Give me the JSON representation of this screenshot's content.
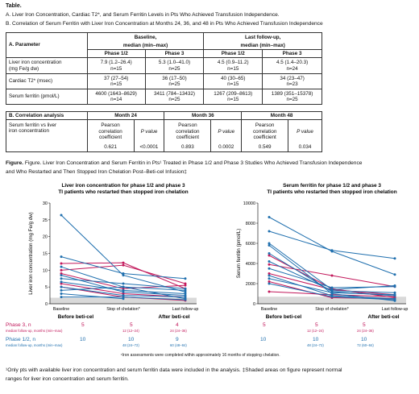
{
  "table_title": "Table.",
  "section_a": "A. Liver Iron Concentration, Cardiac T2*, and Serum Ferritin Levels in Pts Who Achieved Transfusion Independence.",
  "section_b": "B. Correlation of Serum Ferritin with Liver Iron Concentration at Months 24, 36, and 48 in Pts Who Achieved Transfusion Independence",
  "table_a": {
    "param_header": "A.   Parameter",
    "baseline_header": "Baseline,",
    "last_header": "Last follow-up,",
    "median_header": "median (min–max)",
    "phase12": "Phase 1/2",
    "phase3": "Phase 3",
    "rows": [
      {
        "label1": "Liver iron concentration",
        "label2": "(mg Fe/g dw)",
        "c1": "7.9 (1.2–26.4)",
        "n1": "n=15",
        "c2": "5.3 (1.0–41.0)",
        "n2": "n=25",
        "c3": "4.5 (0.9–11.2)",
        "n3": "n=15",
        "c4": "4.5 (1.4–20.3)",
        "n4": "n=24"
      },
      {
        "label1": "Cardiac T2* (msec)",
        "label2": "",
        "c1": "37 (27–54)",
        "n1": "n=15",
        "c2": "36 (17–50)",
        "n2": "n=25",
        "c3": "40 (30–65)",
        "n3": "n=15",
        "c4": "34 (23–47)",
        "n4": "n=23"
      },
      {
        "label1": "Serum ferritin (pmol/L)",
        "label2": "",
        "c1": "4600 (1643–8629)",
        "n1": "n=14",
        "c2": "3411 (784–13432)",
        "n2": "n=25",
        "c3": "1267 (209–8613)",
        "n3": "n=15",
        "c4": "1389 (351–15378)",
        "n4": "n=25"
      }
    ]
  },
  "table_b": {
    "header": "B.   Correlation analysis",
    "months": [
      "Month 24",
      "Month 36",
      "Month 48"
    ],
    "pearson1": "Pearson correlation",
    "pearson2": "coefficient",
    "pval": "P value",
    "row_label1": "Serum ferritin vs liver",
    "row_label2": "iron concentration",
    "values": [
      "0.621",
      "<0.0001",
      "0.893",
      "0.0002",
      "0.549",
      "0.034"
    ]
  },
  "figure_caption1": "Figure. Liver Iron Concentration and Serum Ferritin in Pts¹ Treated in Phase 1/2 and Phase 3 Studies Who Achieved Transfusion Independence",
  "figure_caption2": "and Who Restarted and Then Stopped Iron Chelation Post–Beti-cel Infusion‡",
  "legend": {
    "phase3_label": "Phase 3, n",
    "phase3_sub": "median follow-up, months (min–max)",
    "phase12_label": "Phase 1/2, n",
    "phase12_sub": "median follow-up, months (min–max)",
    "left_p3_n": [
      "5",
      "5",
      "4"
    ],
    "left_p3_m": [
      "12 (12–24)",
      "24 (24–36)"
    ],
    "left_p12_n": [
      "10",
      "10",
      "9"
    ],
    "left_p12_m": [
      "48 (24–72)",
      "60 (48–84)"
    ],
    "right_p3_n": [
      "5",
      "5",
      "5"
    ],
    "right_p3_m": [
      "12 (12–24)",
      "24 (24–36)"
    ],
    "right_p12_n": [
      "10",
      "10",
      "10"
    ],
    "right_p12_m": [
      "48 (24–72)",
      "72 (60–84)"
    ],
    "iron_note": "¹Iron assessments were completed within approximately 16 months of stopping chelation."
  },
  "footnote1": "¹Only pts with available liver iron concentration and serum ferritin data were included in the analysis. ‡Shaded areas on figure represent normal",
  "footnote2": "ranges for liver iron concentration and serum ferritin.",
  "colors": {
    "phase3": "#c2185b",
    "phase12": "#1f6fae",
    "shade": "#d9d9d9"
  },
  "chart_data": [
    {
      "type": "line",
      "title": "Liver iron concentration for phase 1/2 and phase 3",
      "subtitle": "TI patients who restarted then stopped iron chelation",
      "ylabel": "Liver iron concentration (mg Fe/g dw)",
      "xlabel": "",
      "categories": [
        "Baseline",
        "Stop of chelation*",
        "Last follow-up"
      ],
      "group_labels": [
        "Before beti-cel",
        "After beti-cel"
      ],
      "ylim": [
        0,
        30
      ],
      "yticks": [
        "0",
        "5",
        "10",
        "15",
        "20",
        "25",
        "30"
      ],
      "normal_range": [
        0,
        1.8
      ],
      "series": [
        {
          "group": "phase3",
          "values": [
            12.0,
            12.2,
            4.5
          ]
        },
        {
          "group": "phase3",
          "values": [
            10.0,
            11.5,
            6.0
          ]
        },
        {
          "group": "phase3",
          "values": [
            9.0,
            4.5,
            5.5
          ]
        },
        {
          "group": "phase3",
          "values": [
            6.0,
            3.0,
            2.0
          ]
        },
        {
          "group": "phase3",
          "values": [
            5.0,
            2.0,
            1.0
          ]
        },
        {
          "group": "phase12",
          "values": [
            26.4,
            8.5,
            3.5
          ]
        },
        {
          "group": "phase12",
          "values": [
            14.0,
            9.0,
            7.5
          ]
        },
        {
          "group": "phase12",
          "values": [
            11.0,
            5.0,
            4.0
          ]
        },
        {
          "group": "phase12",
          "values": [
            8.5,
            3.5,
            2.5
          ]
        },
        {
          "group": "phase12",
          "values": [
            7.5,
            6.0,
            4.5
          ]
        },
        {
          "group": "phase12",
          "values": [
            6.5,
            4.0,
            3.0
          ]
        },
        {
          "group": "phase12",
          "values": [
            5.0,
            2.5,
            2.0
          ]
        },
        {
          "group": "phase12",
          "values": [
            4.0,
            5.0,
            1.5
          ]
        },
        {
          "group": "phase12",
          "values": [
            3.0,
            1.5,
            null
          ]
        },
        {
          "group": "phase12",
          "values": [
            2.0,
            2.0,
            1.2
          ]
        }
      ]
    },
    {
      "type": "line",
      "title": "Serum ferritin for phase 1/2 and phase 3",
      "subtitle": "TI patients who restarted then stopped iron chelation",
      "ylabel": "Serum ferritin (pmol/L)",
      "xlabel": "",
      "categories": [
        "Baseline",
        "Stop of chelation*",
        "Last follow-up"
      ],
      "group_labels": [
        "Before beti-cel",
        "After beti-cel"
      ],
      "ylim": [
        0,
        10000
      ],
      "yticks": [
        "0",
        "2000",
        "4000",
        "6000",
        "8000",
        "10000"
      ],
      "normal_range": [
        0,
        700
      ],
      "series": [
        {
          "group": "phase3",
          "values": [
            4800,
            1500,
            600
          ]
        },
        {
          "group": "phase3",
          "values": [
            3900,
            2800,
            1700
          ]
        },
        {
          "group": "phase3",
          "values": [
            3000,
            1400,
            900
          ]
        },
        {
          "group": "phase3",
          "values": [
            2200,
            600,
            500
          ]
        },
        {
          "group": "phase3",
          "values": [
            1200,
            900,
            700
          ]
        },
        {
          "group": "phase12",
          "values": [
            8600,
            5200,
            2900
          ]
        },
        {
          "group": "phase12",
          "values": [
            7200,
            5300,
            4500
          ]
        },
        {
          "group": "phase12",
          "values": [
            6000,
            1400,
            1800
          ]
        },
        {
          "group": "phase12",
          "values": [
            5800,
            1000,
            300
          ]
        },
        {
          "group": "phase12",
          "values": [
            5000,
            1200,
            800
          ]
        },
        {
          "group": "phase12",
          "values": [
            4200,
            1300,
            1100
          ]
        },
        {
          "group": "phase12",
          "values": [
            3500,
            1600,
            1700
          ]
        },
        {
          "group": "phase12",
          "values": [
            2800,
            800,
            500
          ]
        },
        {
          "group": "phase12",
          "values": [
            2500,
            1100,
            900
          ]
        },
        {
          "group": "phase12",
          "values": [
            2000,
            700,
            400
          ]
        }
      ]
    }
  ]
}
